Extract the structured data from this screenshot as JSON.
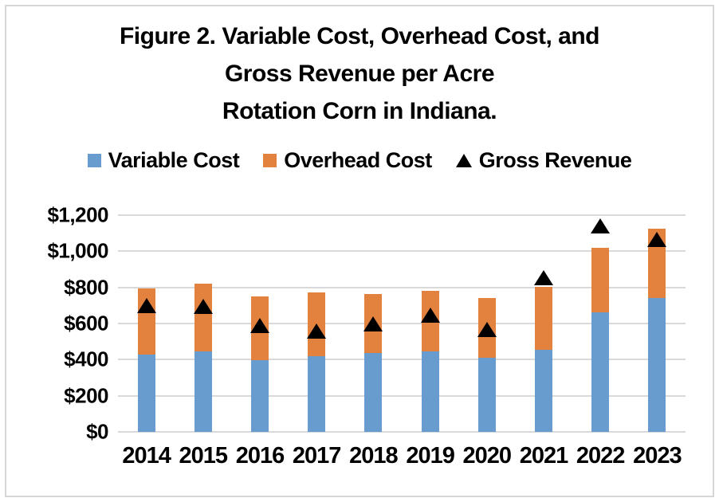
{
  "frame": {
    "border_color": "#d6d6d6",
    "background": "#ffffff"
  },
  "title_lines": [
    "Figure 2. Variable Cost, Overhead Cost, and",
    "Gross Revenue per Acre",
    "Rotation Corn in Indiana."
  ],
  "legend": {
    "items": [
      {
        "label": "Variable Cost",
        "swatch": "square",
        "color": "#689CCE"
      },
      {
        "label": "Overhead Cost",
        "swatch": "square",
        "color": "#E2823E"
      },
      {
        "label": "Gross Revenue",
        "swatch": "triangle",
        "color": "#000000"
      }
    ]
  },
  "chart_data": {
    "type": "bar",
    "stacked": true,
    "title": "Figure 2. Variable Cost, Overhead Cost, and Gross Revenue per Acre Rotation Corn in Indiana.",
    "xlabel": "",
    "ylabel": "",
    "categories": [
      "2014",
      "2015",
      "2016",
      "2017",
      "2018",
      "2019",
      "2020",
      "2021",
      "2022",
      "2023"
    ],
    "series": [
      {
        "name": "Variable Cost",
        "render": "bar",
        "color": "#689CCE",
        "values": [
          430,
          445,
          395,
          420,
          435,
          445,
          410,
          455,
          660,
          740
        ]
      },
      {
        "name": "Overhead Cost",
        "render": "bar",
        "color": "#E2823E",
        "values": [
          365,
          375,
          355,
          350,
          330,
          335,
          330,
          350,
          360,
          385
        ]
      },
      {
        "name": "Gross Revenue",
        "render": "scatter",
        "marker": "triangle",
        "color": "#000000",
        "values": [
          700,
          695,
          590,
          560,
          600,
          645,
          565,
          855,
          1140,
          1065
        ]
      }
    ],
    "stacked_totals": [
      795,
      820,
      750,
      770,
      765,
      780,
      740,
      805,
      1020,
      1125
    ],
    "ylim": [
      0,
      1200
    ],
    "ytick_step": 200,
    "ytick_labels": [
      "$0",
      "$200",
      "$400",
      "$600",
      "$800",
      "$1,000",
      "$1,200"
    ],
    "grid": true,
    "gridline_color": "#d9d9d9",
    "legend_position": "top"
  }
}
